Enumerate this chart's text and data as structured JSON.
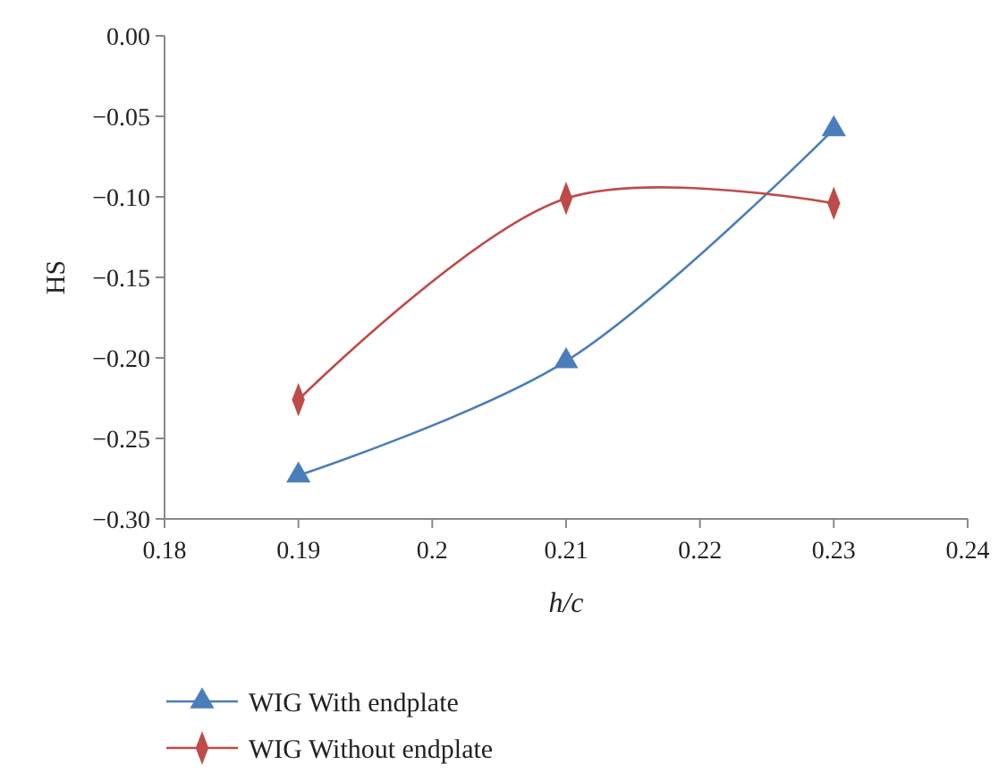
{
  "chart_data": {
    "type": "line",
    "xlabel": "h/c",
    "ylabel": "HS",
    "xlim": [
      0.18,
      0.24
    ],
    "xticks": [
      0.18,
      0.19,
      0.2,
      0.21,
      0.22,
      0.23,
      0.24
    ],
    "ylim": [
      -0.3,
      0
    ],
    "yticks": [
      {
        "value": 0,
        "label": "0.00"
      },
      {
        "value": -0.05,
        "label": "−0.05"
      },
      {
        "value": -0.1,
        "label": "−0.10"
      },
      {
        "value": -0.15,
        "label": "−0.15"
      },
      {
        "value": -0.2,
        "label": "−0.20"
      },
      {
        "value": -0.25,
        "label": "−0.25"
      },
      {
        "value": -0.3,
        "label": "−0.30"
      }
    ],
    "x": [
      0.19,
      0.21,
      0.23
    ],
    "grid": false,
    "legend": "bottom left",
    "line_style": "solid",
    "series": [
      {
        "name": "WIG With endplate",
        "color": "#4a7ebb",
        "marker": "triangle",
        "values": [
          -0.273,
          -0.202,
          -0.058
        ]
      },
      {
        "name": "WIG Without endplate",
        "color": "#be4b48",
        "marker": "diamond",
        "values": [
          -0.226,
          -0.101,
          -0.104
        ]
      }
    ]
  }
}
